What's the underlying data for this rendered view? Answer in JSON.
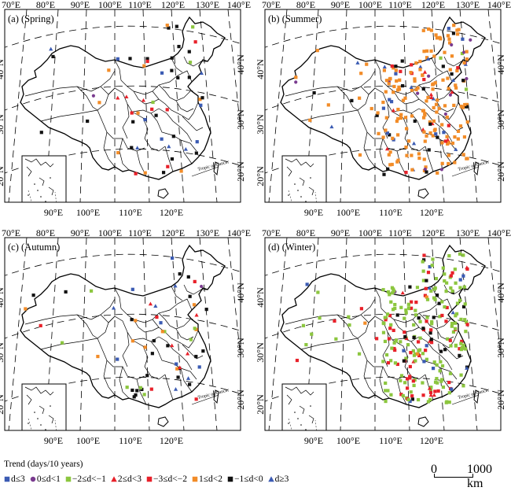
{
  "panels": [
    {
      "label": "(a) (Spring)",
      "season": "spring",
      "top_lon": [
        "70°E",
        "80°E",
        "90°E",
        "100°E",
        "110°E",
        "120°E",
        "130°E",
        "140°E"
      ],
      "left_lat": [
        "40°N",
        "30°N",
        "20°N"
      ],
      "right_lat": [
        "40°N",
        "30°N",
        "20°N"
      ],
      "bottom_lon": [
        "90°E",
        "100°E",
        "110°E",
        "120°E"
      ]
    },
    {
      "label": "(b) (Summer)",
      "season": "summer",
      "top_lon": [
        "70°E",
        "80°E",
        "90°E",
        "100°E",
        "110°E",
        "120°E",
        "130°E",
        "140°E"
      ],
      "left_lat": [
        "40°N",
        "30°N",
        "20°N"
      ],
      "right_lat": [
        "40°N",
        "30°N",
        "20°N"
      ],
      "bottom_lon": [
        "90°E",
        "100°E",
        "110°E",
        "120°E"
      ]
    },
    {
      "label": "(c) (Autumn)",
      "season": "autumn",
      "top_lon": [
        "70°E",
        "80°E",
        "90°E",
        "100°E",
        "110°E",
        "120°E",
        "130°E",
        "140°E"
      ],
      "left_lat": [
        "40°N",
        "30°N",
        "20°N"
      ],
      "right_lat": [
        "40°N",
        "30°N",
        "20°N"
      ],
      "bottom_lon": [
        "90°E",
        "100°E",
        "110°E",
        "120°E"
      ]
    },
    {
      "label": "(d) (Winter)",
      "season": "winter",
      "top_lon": [
        "70°E",
        "80°E",
        "90°E",
        "100°E",
        "110°E",
        "120°E",
        "130°E",
        "140°E"
      ],
      "left_lat": [
        "40°N",
        "30°N",
        "20°N"
      ],
      "right_lat": [
        "40°N",
        "30°N",
        "20°N"
      ],
      "bottom_lon": [
        "90°E",
        "100°E",
        "110°E",
        "120°E"
      ]
    }
  ],
  "tropic_label": "Tropic of Cancer",
  "legend": {
    "title": "Trend (days/10 years)",
    "items": [
      {
        "symbol": "square",
        "color": "#3b5bb3",
        "label": "d≤3"
      },
      {
        "symbol": "circle",
        "color": "#7a3b8f",
        "label": "0≤d<1"
      },
      {
        "symbol": "square",
        "color": "#8cc63f",
        "label": "−2≤d<−1"
      },
      {
        "symbol": "triangle",
        "color": "#e8212a",
        "label": "2≤d<3"
      },
      {
        "symbol": "square",
        "color": "#e8212a",
        "label": "−3≤d<−2"
      },
      {
        "symbol": "square",
        "color": "#f28c28",
        "label": "1≤d<2"
      },
      {
        "symbol": "square",
        "color": "#111111",
        "label": "−1≤d<0"
      },
      {
        "symbol": "triangle",
        "color": "#3b5bb3",
        "label": "d≥3"
      }
    ]
  },
  "scale_bar": {
    "start": "0",
    "end": "1000 km"
  },
  "colors": {
    "border": "#000000",
    "graticule": "#000000",
    "background": "#ffffff"
  }
}
